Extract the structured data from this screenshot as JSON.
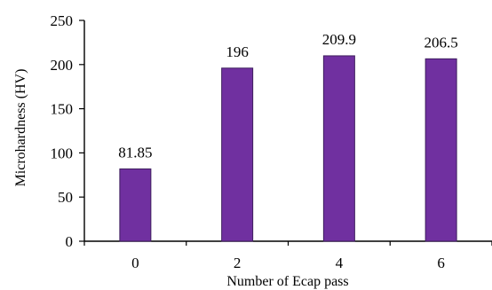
{
  "chart_data": {
    "type": "bar",
    "title": "",
    "xlabel": "Number of  Ecap pass",
    "ylabel": "Microhardness (HV)",
    "categories": [
      "0",
      "2",
      "4",
      "6"
    ],
    "series": [
      {
        "values": [
          81.85,
          196,
          209.9,
          206.5
        ]
      }
    ],
    "data_labels": [
      "81.85",
      "196",
      "209.9",
      "206.5"
    ],
    "ylim": [
      0,
      250
    ],
    "yticks": [
      0,
      50,
      100,
      150,
      200,
      250
    ],
    "grid": false,
    "legend": "none",
    "bar_color": "#7030a0"
  }
}
